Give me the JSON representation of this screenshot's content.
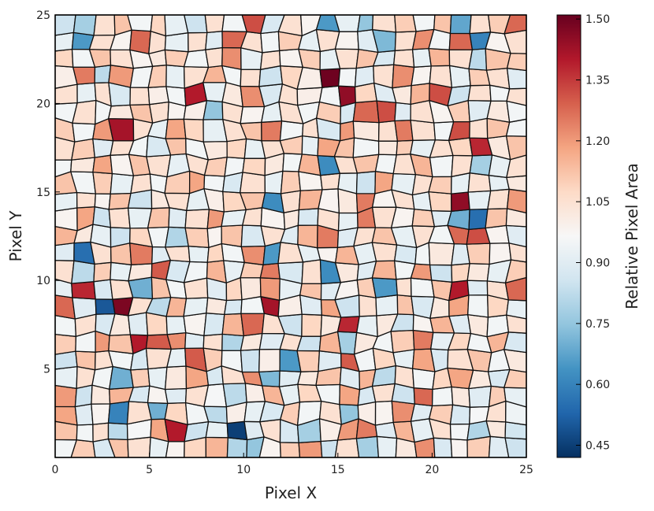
{
  "chart_data": {
    "type": "heatmap",
    "title": "",
    "xlabel": "Pixel X",
    "ylabel": "Pixel Y",
    "xlim": [
      0,
      25
    ],
    "ylim": [
      0,
      25
    ],
    "x_ticks": [
      0,
      5,
      10,
      15,
      20,
      25
    ],
    "y_ticks": [
      5,
      10,
      15,
      20,
      25
    ],
    "grid": false,
    "grid_size": [
      25,
      25
    ],
    "colorbar": {
      "label": "Relative Pixel Area",
      "range": [
        0.42,
        1.51
      ],
      "ticks": [
        "0.45",
        "0.60",
        "0.75",
        "0.90",
        "1.05",
        "1.20",
        "1.35",
        "1.50"
      ],
      "colormap": "RdBu_r",
      "stops": [
        "#053061",
        "#2166ac",
        "#4393c3",
        "#92c5de",
        "#d1e5f0",
        "#f7f7f7",
        "#fddbc7",
        "#f4a582",
        "#d6604d",
        "#b2182b",
        "#67001f"
      ]
    },
    "cell_edge_color": "#111111",
    "values": [
      [
        0.95,
        1.1,
        0.88,
        1.12,
        1.05,
        0.92,
        0.98,
        1.08,
        1.15,
        0.8,
        0.75,
        0.98,
        1.1,
        1.2,
        0.85,
        1.05,
        0.78,
        0.92,
        1.02,
        1.22,
        0.88,
        0.98,
        1.1,
        0.9,
        0.85
      ],
      [
        1.12,
        0.95,
        1.05,
        0.82,
        0.96,
        1.18,
        1.4,
        0.85,
        0.92,
        0.45,
        0.9,
        1.05,
        0.88,
        0.78,
        1.0,
        1.2,
        1.25,
        0.9,
        1.15,
        0.92,
        1.05,
        0.95,
        0.8,
        1.02,
        0.86
      ],
      [
        1.18,
        0.9,
        0.98,
        0.6,
        1.05,
        0.7,
        1.08,
        0.95,
        0.82,
        1.0,
        0.92,
        0.88,
        1.1,
        0.95,
        1.05,
        0.75,
        1.0,
        0.98,
        1.22,
        0.9,
        1.1,
        0.88,
        0.96,
        1.05,
        0.94
      ],
      [
        1.2,
        0.85,
        1.02,
        1.15,
        0.88,
        0.98,
        0.9,
        1.05,
        0.96,
        0.82,
        1.0,
        1.15,
        0.92,
        1.08,
        0.95,
        1.18,
        0.88,
        1.05,
        0.85,
        1.28,
        0.95,
        1.02,
        0.9,
        1.1,
        0.92
      ],
      [
        0.92,
        1.05,
        0.95,
        0.7,
        1.1,
        0.92,
        1.02,
        1.18,
        0.88,
        1.05,
        1.22,
        0.72,
        0.9,
        1.02,
        1.12,
        0.9,
        1.15,
        0.82,
        1.05,
        0.95,
        1.08,
        1.18,
        1.02,
        0.88,
        1.1
      ],
      [
        0.85,
        1.12,
        1.05,
        0.95,
        0.88,
        1.05,
        0.92,
        1.3,
        1.1,
        0.95,
        0.85,
        1.0,
        0.65,
        1.1,
        0.9,
        1.3,
        0.95,
        1.08,
        0.92,
        1.18,
        0.88,
        1.05,
        1.12,
        0.95,
        1.02
      ],
      [
        1.1,
        0.95,
        1.2,
        1.12,
        1.4,
        1.3,
        1.22,
        0.9,
        1.05,
        0.8,
        1.02,
        0.9,
        1.05,
        0.85,
        1.15,
        0.78,
        1.02,
        0.95,
        1.1,
        1.25,
        0.92,
        1.08,
        0.95,
        1.15,
        0.88
      ],
      [
        0.95,
        1.05,
        0.88,
        1.02,
        0.9,
        1.08,
        0.92,
        0.98,
        0.88,
        1.15,
        1.28,
        1.05,
        0.85,
        1.08,
        1.02,
        1.38,
        0.92,
        1.02,
        0.85,
        0.98,
        1.15,
        0.9,
        1.02,
        0.95,
        1.05
      ],
      [
        1.28,
        0.9,
        0.5,
        1.48,
        1.05,
        0.82,
        1.15,
        0.92,
        1.02,
        0.88,
        0.95,
        1.42,
        1.0,
        0.9,
        1.18,
        0.85,
        1.05,
        0.92,
        1.12,
        0.88,
        1.02,
        1.18,
        0.95,
        1.08,
        0.92
      ],
      [
        0.92,
        1.38,
        0.88,
        1.05,
        0.7,
        1.12,
        0.95,
        1.05,
        0.9,
        1.08,
        1.02,
        1.2,
        0.92,
        1.12,
        0.9,
        0.98,
        1.1,
        0.65,
        1.05,
        0.95,
        1.12,
        1.4,
        0.9,
        1.05,
        1.28
      ],
      [
        1.05,
        0.82,
        1.1,
        0.92,
        1.02,
        1.3,
        0.88,
        0.95,
        1.15,
        0.92,
        1.1,
        1.25,
        0.88,
        1.05,
        0.62,
        1.02,
        0.9,
        1.15,
        0.95,
        1.2,
        0.85,
        1.08,
        1.02,
        0.92,
        1.1
      ],
      [
        0.9,
        0.55,
        1.05,
        1.12,
        1.25,
        0.9,
        1.05,
        0.92,
        1.08,
        0.95,
        1.22,
        0.65,
        1.05,
        0.92,
        0.98,
        1.15,
        0.92,
        1.05,
        0.88,
        0.95,
        1.02,
        0.9,
        1.1,
        0.98,
        1.05
      ],
      [
        1.15,
        1.02,
        0.92,
        0.85,
        1.08,
        0.95,
        0.8,
        1.1,
        0.98,
        1.12,
        0.88,
        1.05,
        0.9,
        1.15,
        1.25,
        0.9,
        1.05,
        1.12,
        0.92,
        1.05,
        0.95,
        1.28,
        1.32,
        0.98,
        0.9
      ],
      [
        0.98,
        1.18,
        0.85,
        1.05,
        0.92,
        1.12,
        0.9,
        1.05,
        1.2,
        0.92,
        1.05,
        0.98,
        1.02,
        0.88,
        1.05,
        0.92,
        1.25,
        1.05,
        0.98,
        1.1,
        0.9,
        0.7,
        0.55,
        1.12,
        1.02
      ],
      [
        0.92,
        1.05,
        0.98,
        1.12,
        0.85,
        1.02,
        1.05,
        0.92,
        1.0,
        1.08,
        1.12,
        0.62,
        1.05,
        1.15,
        0.98,
        1.02,
        1.25,
        0.98,
        1.05,
        0.92,
        1.08,
        1.45,
        0.92,
        1.05,
        1.2
      ],
      [
        1.12,
        0.95,
        1.1,
        0.92,
        1.05,
        0.95,
        1.1,
        1.18,
        0.95,
        0.88,
        1.05,
        0.92,
        1.1,
        0.98,
        1.05,
        0.92,
        0.85,
        1.18,
        0.92,
        1.05,
        1.1,
        0.92,
        1.05,
        0.92,
        1.02
      ],
      [
        0.95,
        1.02,
        1.18,
        0.98,
        1.12,
        1.05,
        0.92,
        1.05,
        1.1,
        0.95,
        1.08,
        1.02,
        0.95,
        1.15,
        0.62,
        1.05,
        1.12,
        0.95,
        1.05,
        1.15,
        0.95,
        1.05,
        0.78,
        0.92,
        1.05
      ],
      [
        1.05,
        1.1,
        0.9,
        1.05,
        0.95,
        0.88,
        1.12,
        0.95,
        1.02,
        1.08,
        0.92,
        1.05,
        1.1,
        0.92,
        1.18,
        1.12,
        0.95,
        1.02,
        1.1,
        0.92,
        1.05,
        1.08,
        1.38,
        1.02,
        1.12
      ],
      [
        1.1,
        0.95,
        1.2,
        1.42,
        1.05,
        0.92,
        1.18,
        1.08,
        0.92,
        1.05,
        1.12,
        1.25,
        0.95,
        1.05,
        0.88,
        1.2,
        1.02,
        1.05,
        1.25,
        1.05,
        0.95,
        1.32,
        1.05,
        1.12,
        0.95
      ],
      [
        0.95,
        1.05,
        0.95,
        1.02,
        1.12,
        1.05,
        0.98,
        1.0,
        0.75,
        1.05,
        0.98,
        0.92,
        1.05,
        0.95,
        1.1,
        0.88,
        1.28,
        1.32,
        0.9,
        1.05,
        0.98,
        1.1,
        0.9,
        1.02,
        0.95
      ],
      [
        1.05,
        0.92,
        1.05,
        0.88,
        1.05,
        1.0,
        0.95,
        1.4,
        0.92,
        1.02,
        1.22,
        0.88,
        1.05,
        1.0,
        0.95,
        1.45,
        1.08,
        0.9,
        1.02,
        1.15,
        1.32,
        0.85,
        1.05,
        0.95,
        1.05
      ],
      [
        1.0,
        1.25,
        0.82,
        1.2,
        0.95,
        1.1,
        0.92,
        1.05,
        1.15,
        0.95,
        1.05,
        0.85,
        1.08,
        1.0,
        1.5,
        0.95,
        0.9,
        1.05,
        1.22,
        0.98,
        1.05,
        0.92,
        1.1,
        1.05,
        0.9
      ],
      [
        1.08,
        0.95,
        1.12,
        1.05,
        0.98,
        1.02,
        1.1,
        0.95,
        1.05,
        1.22,
        0.92,
        1.05,
        0.98,
        1.1,
        0.92,
        1.05,
        1.12,
        0.88,
        1.05,
        0.92,
        1.15,
        1.05,
        0.82,
        1.12,
        1.1
      ],
      [
        0.92,
        0.65,
        1.05,
        0.98,
        1.28,
        1.05,
        0.92,
        1.05,
        0.9,
        1.28,
        1.05,
        0.95,
        1.1,
        0.92,
        1.05,
        0.98,
        0.9,
        0.72,
        1.05,
        1.22,
        0.95,
        1.28,
        0.6,
        0.98,
        1.05
      ],
      [
        0.85,
        0.78,
        1.05,
        1.12,
        0.95,
        1.08,
        0.92,
        0.85,
        1.05,
        0.95,
        1.32,
        0.88,
        1.05,
        0.98,
        0.65,
        0.92,
        0.75,
        1.05,
        1.1,
        0.95,
        1.12,
        0.68,
        1.05,
        1.1,
        1.28
      ]
    ]
  }
}
